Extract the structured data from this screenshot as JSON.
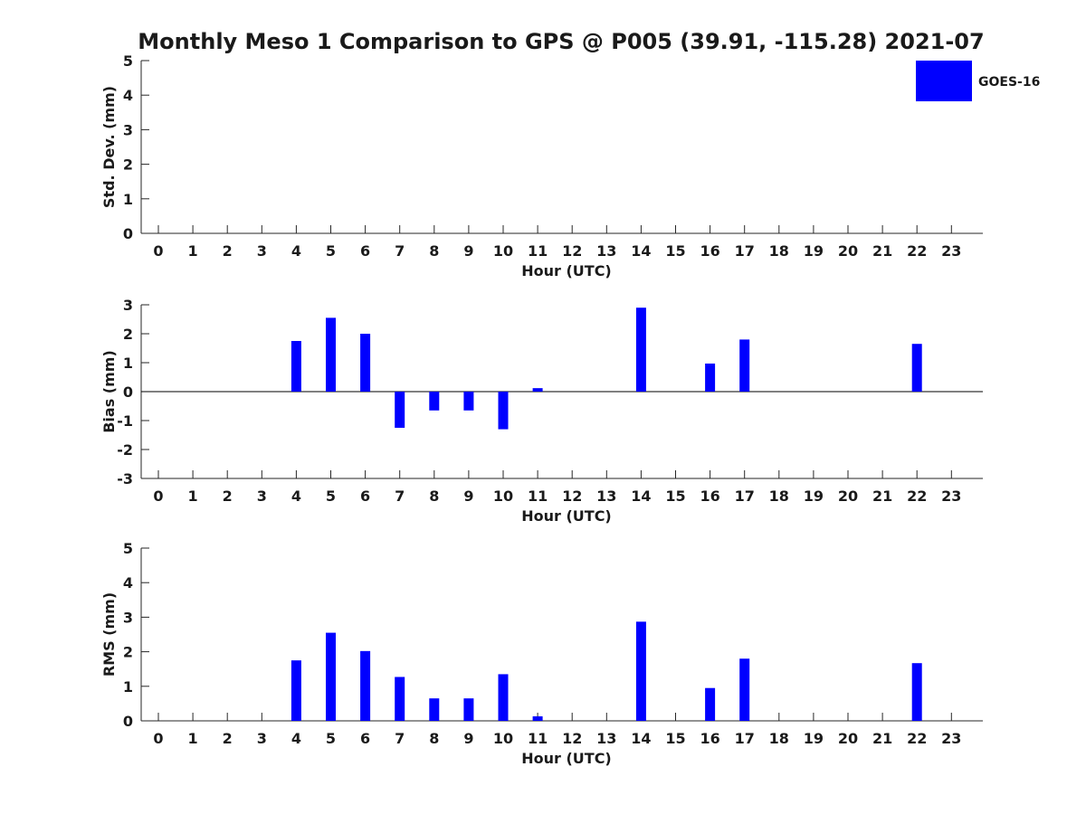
{
  "title": "Monthly Meso 1 Comparison to GPS @ P005 (39.91, -115.28) 2021-07",
  "legend": {
    "label": "GOES-16",
    "color": "#0000ff",
    "placement": "top-right"
  },
  "colors": {
    "bar": "#0000ff",
    "axis": "#262626",
    "text": "#1a1a1a"
  },
  "chart_data": [
    {
      "type": "bar",
      "ylabel": "Std. Dev. (mm)",
      "xlabel": "Hour (UTC)",
      "ylim": [
        0,
        5
      ],
      "yticks": [
        "0",
        "1",
        "2",
        "3",
        "4",
        "5"
      ],
      "categories": [
        "0",
        "1",
        "2",
        "3",
        "4",
        "5",
        "6",
        "7",
        "8",
        "9",
        "10",
        "11",
        "12",
        "13",
        "14",
        "15",
        "16",
        "17",
        "18",
        "19",
        "20",
        "21",
        "22",
        "23"
      ],
      "series": [
        {
          "name": "GOES-16",
          "values": [
            null,
            null,
            null,
            null,
            null,
            null,
            null,
            null,
            null,
            null,
            null,
            null,
            null,
            null,
            null,
            null,
            null,
            null,
            null,
            null,
            null,
            null,
            null,
            null
          ]
        }
      ],
      "grid": false
    },
    {
      "type": "bar",
      "ylabel": "Bias (mm)",
      "xlabel": "Hour (UTC)",
      "ylim": [
        -3,
        3
      ],
      "yticks": [
        "-3",
        "-2",
        "-1",
        "0",
        "1",
        "2",
        "3"
      ],
      "zero_line": true,
      "categories": [
        "0",
        "1",
        "2",
        "3",
        "4",
        "5",
        "6",
        "7",
        "8",
        "9",
        "10",
        "11",
        "12",
        "13",
        "14",
        "15",
        "16",
        "17",
        "18",
        "19",
        "20",
        "21",
        "22",
        "23"
      ],
      "series": [
        {
          "name": "GOES-16",
          "values": [
            null,
            null,
            null,
            null,
            1.75,
            2.55,
            2.0,
            -1.25,
            -0.65,
            -0.65,
            -1.3,
            0.12,
            null,
            null,
            2.9,
            null,
            0.97,
            1.8,
            null,
            null,
            null,
            null,
            1.65,
            null
          ]
        }
      ],
      "grid": false
    },
    {
      "type": "bar",
      "ylabel": "RMS (mm)",
      "xlabel": "Hour (UTC)",
      "ylim": [
        0,
        5
      ],
      "yticks": [
        "0",
        "1",
        "2",
        "3",
        "4",
        "5"
      ],
      "categories": [
        "0",
        "1",
        "2",
        "3",
        "4",
        "5",
        "6",
        "7",
        "8",
        "9",
        "10",
        "11",
        "12",
        "13",
        "14",
        "15",
        "16",
        "17",
        "18",
        "19",
        "20",
        "21",
        "22",
        "23"
      ],
      "series": [
        {
          "name": "GOES-16",
          "values": [
            null,
            null,
            null,
            null,
            1.75,
            2.55,
            2.02,
            1.27,
            0.65,
            0.65,
            1.35,
            0.13,
            null,
            null,
            2.87,
            null,
            0.95,
            1.8,
            null,
            null,
            null,
            null,
            1.67,
            null
          ]
        }
      ],
      "grid": false
    }
  ]
}
